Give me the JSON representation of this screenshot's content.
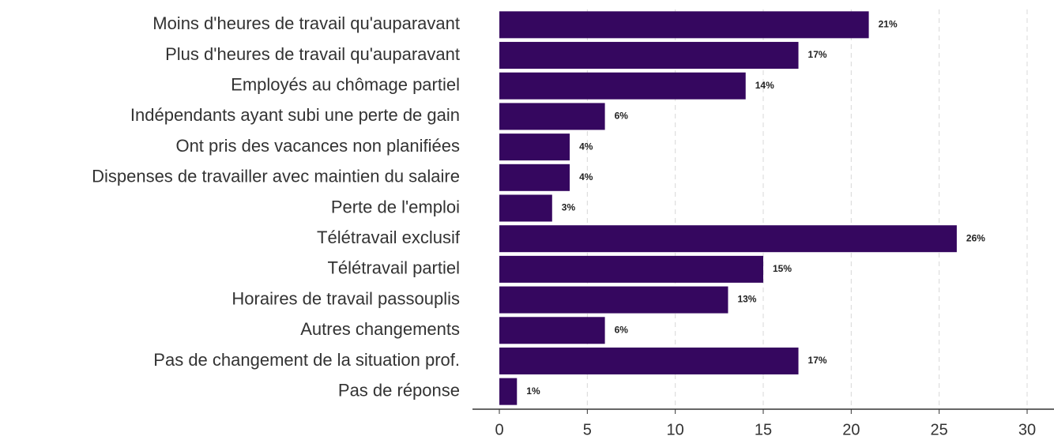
{
  "chart_data": {
    "type": "bar",
    "orientation": "horizontal",
    "categories": [
      "Moins d'heures de travail qu'auparavant",
      "Plus d'heures de travail qu'auparavant",
      "Employés au chômage partiel",
      "Indépendants ayant subi une perte de gain",
      "Ont pris des vacances non planifiées",
      "Dispenses de travailler avec maintien du salaire",
      "Perte de l'emploi",
      "Télétravail exclusif",
      "Télétravail partiel",
      "Horaires de travail passouplis",
      "Autres changements",
      "Pas de changement de la situation prof.",
      "Pas de réponse"
    ],
    "values": [
      21,
      17,
      14,
      6,
      4,
      4,
      3,
      26,
      15,
      13,
      6,
      17,
      1
    ],
    "value_labels": [
      "21%",
      "17%",
      "14%",
      "6%",
      "4%",
      "4%",
      "3%",
      "26%",
      "15%",
      "13%",
      "6%",
      "17%",
      "1%"
    ],
    "color": "#35075f",
    "xlim": [
      0,
      30
    ],
    "xticks": [
      0,
      5,
      10,
      15,
      20,
      25,
      30
    ],
    "grid": true
  }
}
